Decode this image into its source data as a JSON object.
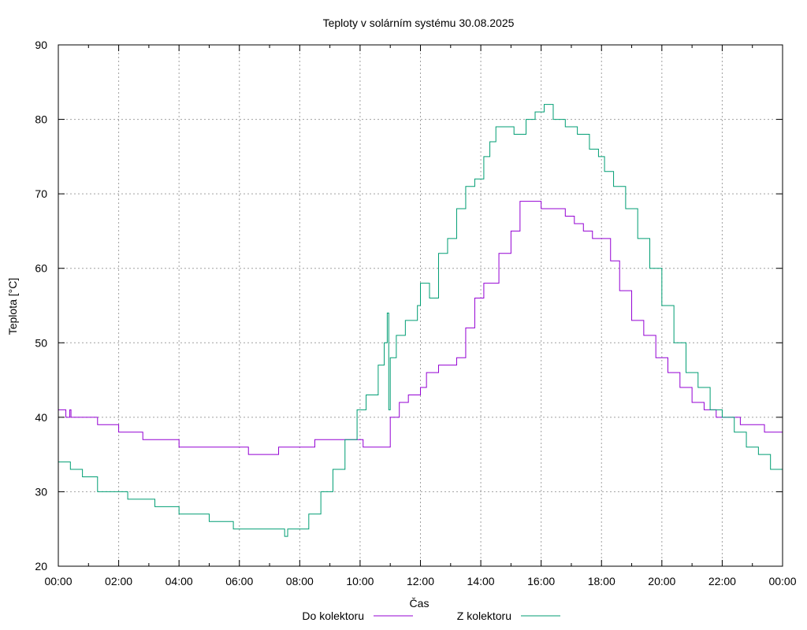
{
  "chart_data": {
    "type": "line",
    "title": "Teploty v solárním systému 30.08.2025",
    "xlabel": "Čas",
    "ylabel": "Teplota [°C]",
    "xlim": [
      0,
      24
    ],
    "ylim": [
      20,
      90
    ],
    "x_ticks": [
      0,
      2,
      4,
      6,
      8,
      10,
      12,
      14,
      16,
      18,
      20,
      22,
      24
    ],
    "x_tick_labels": [
      "00:00",
      "02:00",
      "04:00",
      "06:00",
      "08:00",
      "10:00",
      "12:00",
      "14:00",
      "16:00",
      "18:00",
      "20:00",
      "22:00",
      "00:00"
    ],
    "y_ticks": [
      20,
      30,
      40,
      50,
      60,
      70,
      80,
      90
    ],
    "y_tick_labels": [
      "20",
      "30",
      "40",
      "50",
      "60",
      "70",
      "80",
      "90"
    ],
    "grid": true,
    "legend_position": "bottom",
    "series": [
      {
        "name": "Do kolektoru",
        "color": "#9400d3",
        "x": [
          0,
          0.2,
          0.25,
          0.35,
          0.38,
          0.42,
          0.5,
          1.3,
          2.0,
          2.8,
          4.0,
          5.5,
          6.3,
          7.3,
          8.5,
          9.4,
          10.1,
          10.9,
          11.0,
          11.3,
          11.6,
          12.0,
          12.2,
          12.6,
          12.9,
          13.2,
          13.5,
          13.8,
          14.1,
          14.6,
          15.0,
          15.3,
          15.6,
          16.0,
          16.4,
          16.8,
          17.1,
          17.4,
          17.7,
          18.0,
          18.3,
          18.6,
          19.0,
          19.4,
          19.8,
          20.2,
          20.6,
          21.0,
          21.4,
          21.8,
          22.2,
          22.6,
          23.0,
          23.4,
          23.7,
          24.0
        ],
        "y": [
          41,
          41,
          40,
          40,
          41,
          40,
          40,
          39,
          38,
          37,
          36,
          36,
          35,
          36,
          37,
          37,
          36,
          36,
          40,
          42,
          43,
          44,
          46,
          47,
          47,
          48,
          52,
          56,
          58,
          62,
          65,
          69,
          69,
          68,
          68,
          67,
          66,
          65,
          64,
          64,
          61,
          57,
          53,
          51,
          48,
          46,
          44,
          42,
          41,
          40,
          40,
          39,
          39,
          38,
          38,
          37
        ]
      },
      {
        "name": "Z kolektoru",
        "color": "#009e73",
        "x": [
          0,
          0.4,
          0.8,
          1.3,
          2.0,
          2.3,
          3.2,
          4.0,
          5.0,
          5.8,
          6.5,
          7.4,
          7.5,
          7.6,
          8.0,
          8.3,
          8.7,
          9.1,
          9.5,
          9.9,
          10.2,
          10.6,
          10.8,
          10.9,
          10.95,
          11.0,
          11.2,
          11.5,
          11.9,
          12.0,
          12.3,
          12.6,
          12.9,
          13.2,
          13.5,
          13.8,
          14.1,
          14.3,
          14.5,
          14.8,
          15.1,
          15.5,
          15.8,
          16.1,
          16.4,
          16.8,
          17.2,
          17.6,
          17.9,
          18.1,
          18.4,
          18.8,
          19.2,
          19.6,
          20.0,
          20.4,
          20.8,
          21.2,
          21.6,
          22.0,
          22.4,
          22.8,
          23.2,
          23.6,
          24.0
        ],
        "y": [
          34,
          33,
          32,
          30,
          30,
          29,
          28,
          27,
          26,
          25,
          25,
          25,
          24,
          25,
          25,
          27,
          30,
          33,
          37,
          41,
          43,
          47,
          50,
          54,
          41,
          48,
          51,
          53,
          55,
          58,
          56,
          62,
          64,
          68,
          71,
          72,
          75,
          77,
          79,
          79,
          78,
          80,
          81,
          82,
          80,
          79,
          78,
          76,
          75,
          73,
          71,
          68,
          64,
          60,
          55,
          50,
          46,
          44,
          41,
          40,
          38,
          36,
          35,
          33,
          31
        ]
      }
    ]
  }
}
